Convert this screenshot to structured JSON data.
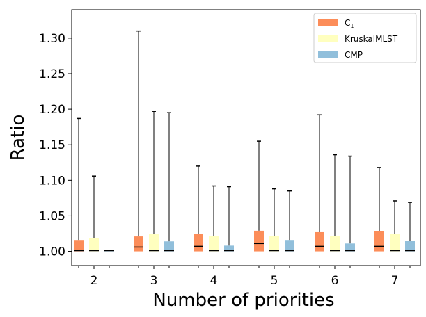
{
  "chart_data": {
    "type": "boxplot",
    "xlabel": "Number of priorities",
    "ylabel": "Ratio",
    "ylim": [
      0.98,
      1.34
    ],
    "y_ticks": [
      "1.00",
      "1.05",
      "1.10",
      "1.15",
      "1.20",
      "1.25",
      "1.30"
    ],
    "categories": [
      "2",
      "3",
      "4",
      "5",
      "6",
      "7"
    ],
    "legend": {
      "position": "top-right"
    },
    "series": [
      {
        "name": "C",
        "name_subscript": "1",
        "color": "#fc8d59",
        "boxes": [
          {
            "q1": 1.0,
            "median": 1.001,
            "q3": 1.016,
            "whisker_high": 1.187
          },
          {
            "q1": 1.0,
            "median": 1.006,
            "q3": 1.021,
            "whisker_high": 1.31
          },
          {
            "q1": 1.0,
            "median": 1.007,
            "q3": 1.025,
            "whisker_high": 1.12
          },
          {
            "q1": 1.0,
            "median": 1.011,
            "q3": 1.029,
            "whisker_high": 1.155
          },
          {
            "q1": 1.0,
            "median": 1.007,
            "q3": 1.027,
            "whisker_high": 1.192
          },
          {
            "q1": 1.0,
            "median": 1.007,
            "q3": 1.028,
            "whisker_high": 1.118
          }
        ]
      },
      {
        "name": "KruskalMLST",
        "color": "#ffffbf",
        "boxes": [
          {
            "q1": 1.0,
            "median": 1.001,
            "q3": 1.019,
            "whisker_high": 1.106
          },
          {
            "q1": 1.0,
            "median": 1.001,
            "q3": 1.024,
            "whisker_high": 1.197
          },
          {
            "q1": 1.0,
            "median": 1.001,
            "q3": 1.022,
            "whisker_high": 1.092
          },
          {
            "q1": 1.0,
            "median": 1.001,
            "q3": 1.022,
            "whisker_high": 1.088
          },
          {
            "q1": 1.0,
            "median": 1.001,
            "q3": 1.022,
            "whisker_high": 1.136
          },
          {
            "q1": 1.0,
            "median": 1.001,
            "q3": 1.024,
            "whisker_high": 1.071
          }
        ]
      },
      {
        "name": "CMP",
        "color": "#91bfdb",
        "boxes": [
          {
            "q1": 1.0,
            "median": 1.001,
            "q3": 1.001,
            "whisker_high": 1.001
          },
          {
            "q1": 1.0,
            "median": 1.001,
            "q3": 1.014,
            "whisker_high": 1.195
          },
          {
            "q1": 1.0,
            "median": 1.001,
            "q3": 1.008,
            "whisker_high": 1.091
          },
          {
            "q1": 1.0,
            "median": 1.001,
            "q3": 1.016,
            "whisker_high": 1.085
          },
          {
            "q1": 1.0,
            "median": 1.001,
            "q3": 1.011,
            "whisker_high": 1.134
          },
          {
            "q1": 1.0,
            "median": 1.001,
            "q3": 1.015,
            "whisker_high": 1.069
          }
        ]
      }
    ]
  }
}
